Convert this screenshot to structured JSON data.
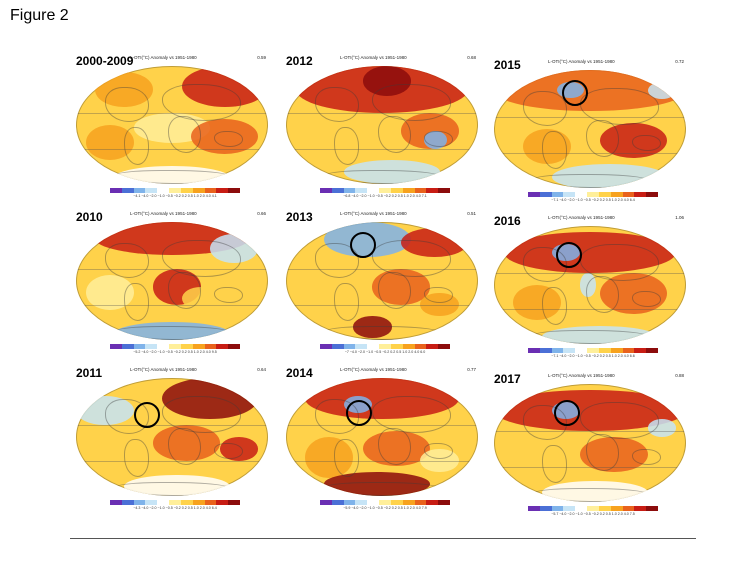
{
  "figure_label": "Figure 2",
  "subtitle": "L-OTI(°C) Anomaly vs 1951-1980",
  "palette": [
    "#6a2fb3",
    "#4b6fd6",
    "#7fb3ea",
    "#c6e4f6",
    "#ffffff",
    "#ffef9a",
    "#ffd24a",
    "#f7a21e",
    "#e9621c",
    "#c81d14",
    "#8c0c0c"
  ],
  "panels": [
    {
      "year": "2000-2009",
      "mean": "0.59",
      "scale": "−4.1 −4.0 −2.0 −1.0 −0.5 −0.2 0.2 0.5 1.0 2.0 4.0 4.1",
      "circle": false
    },
    {
      "year": "2012",
      "mean": "0.68",
      "scale": "−6.8 −4.0 −2.0 −1.0 −0.5 −0.2 0.2 0.5 1.0 2.0 4.0 7.1",
      "circle": false
    },
    {
      "year": "2015",
      "mean": "0.72",
      "scale": "−7.1 −4.0 −2.0 −1.0 −0.5 −0.2 0.2 0.5 1.0 2.0 4.0 6.4",
      "circle": true
    },
    {
      "year": "2010",
      "mean": "0.66",
      "scale": "−5.2 −4.0 −2.0 −1.0 −0.5 −0.2 0.2 0.5 1.0 2.0 4.0 9.5",
      "circle": false
    },
    {
      "year": "2013",
      "mean": "0.51",
      "scale": "−7 −4.0 −2.0 −1.0 −0.5 −0.2 0.2 0.5 1.0 2.0 4.0 6.0",
      "circle": true
    },
    {
      "year": "2016",
      "mean": "1.06",
      "scale": "−7.1 −4.0 −2.0 −1.0 −0.5 −0.2 0.2 0.5 1.0 2.0 4.0 6.6",
      "circle": true
    },
    {
      "year": "2011",
      "mean": "0.64",
      "scale": "−4.3 −4.0 −2.0 −1.0 −0.5 −0.2 0.2 0.5 1.0 2.0 4.0 6.4",
      "circle": true
    },
    {
      "year": "2014",
      "mean": "0.77",
      "scale": "−5.9 −4.0 −2.0 −1.0 −0.5 −0.2 0.2 0.5 1.0 2.0 4.0 7.9",
      "circle": true
    },
    {
      "year": "2017",
      "mean": "0.88",
      "scale": "−5.7 −4.0 −2.0 −1.0 −0.5 −0.2 0.2 0.5 1.0 2.0 4.0 7.5",
      "circle": true
    }
  ]
}
